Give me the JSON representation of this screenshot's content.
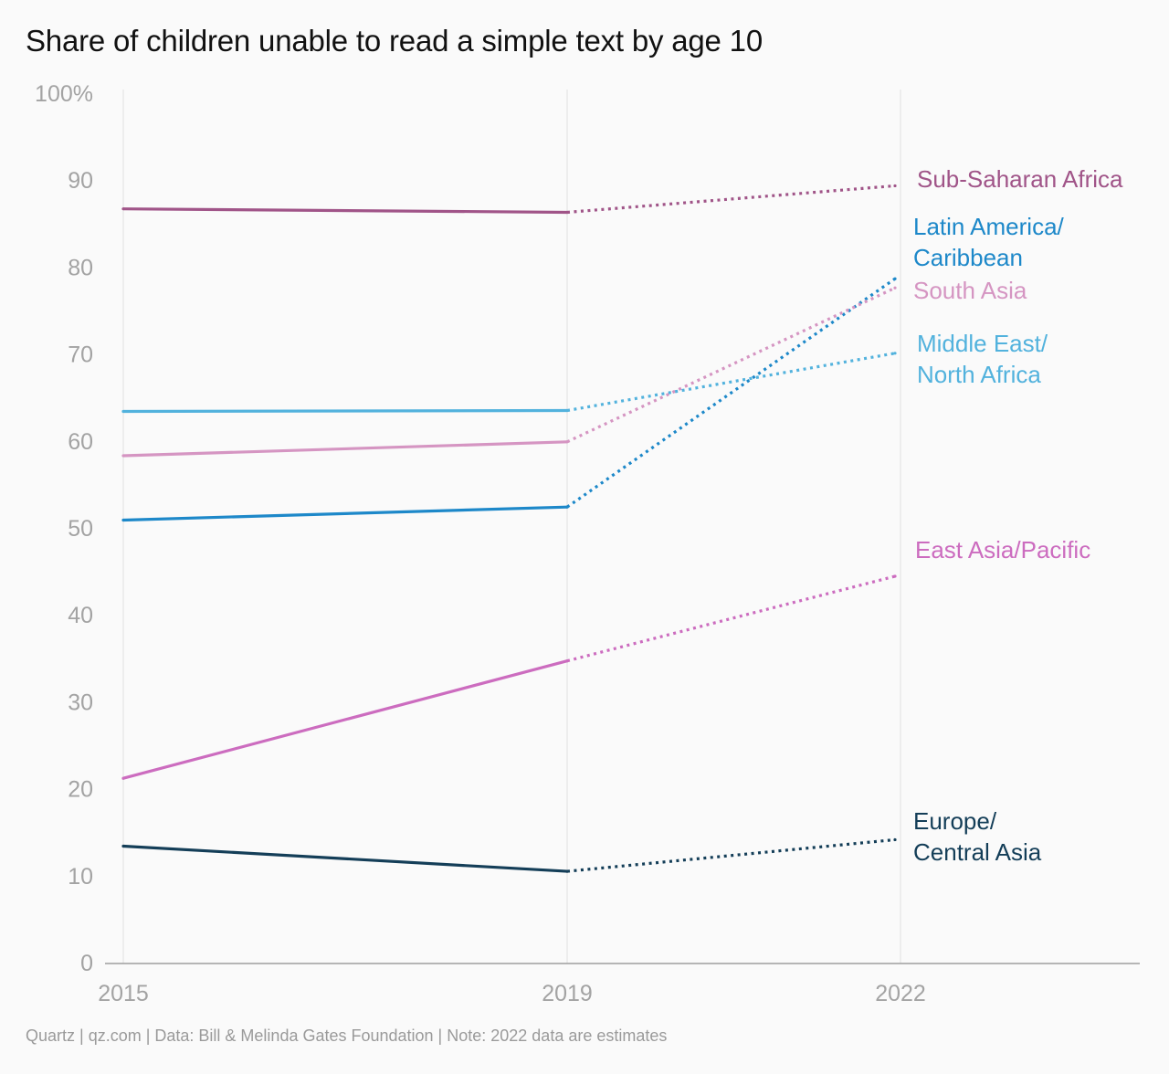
{
  "chart_data": {
    "type": "line",
    "title": "Share of children unable to read a simple text by age 10",
    "x": [
      "2015",
      "2019",
      "2022"
    ],
    "y_ticks": [
      "0",
      "10",
      "20",
      "30",
      "40",
      "50",
      "60",
      "70",
      "80",
      "90",
      "100%"
    ],
    "ylim": [
      0,
      100
    ],
    "grid": "vertical lines at each year",
    "estimate_style": "dotted line for 2019-2022 (estimates)",
    "series": [
      {
        "name": "Sub-Saharan Africa",
        "label_lines": [
          "Sub-Saharan Africa"
        ],
        "values": [
          86.8,
          86.4,
          89.5
        ],
        "color": "#a05488"
      },
      {
        "name": "Latin America/Caribbean",
        "label_lines": [
          "Latin America/",
          "Caribbean"
        ],
        "values": [
          51.0,
          52.5,
          79.2
        ],
        "color": "#1d88c9"
      },
      {
        "name": "South Asia",
        "label_lines": [
          "South Asia"
        ],
        "values": [
          58.4,
          60.0,
          78.0
        ],
        "color": "#d595c2"
      },
      {
        "name": "Middle East/North Africa",
        "label_lines": [
          "Middle East/",
          "North Africa"
        ],
        "values": [
          63.5,
          63.6,
          70.3
        ],
        "color": "#52b2dd"
      },
      {
        "name": "East Asia/Pacific",
        "label_lines": [
          "East Asia/Pacific"
        ],
        "values": [
          21.3,
          34.8,
          44.7
        ],
        "color": "#cc6cbf"
      },
      {
        "name": "Europe/Central Asia",
        "label_lines": [
          "Europe/",
          "Central Asia"
        ],
        "values": [
          13.5,
          10.6,
          14.3
        ],
        "color": "#143e58"
      }
    ]
  },
  "footer": "Quartz | qz.com | Data: Bill & Melinda Gates Foundation | Note: 2022 data are estimates"
}
